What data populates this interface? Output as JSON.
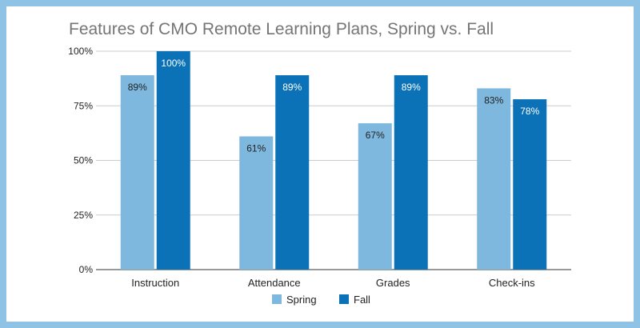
{
  "chart_data": {
    "type": "bar",
    "title": "Features of CMO Remote Learning Plans, Spring vs. Fall",
    "categories": [
      "Instruction",
      "Attendance",
      "Grades",
      "Check-ins"
    ],
    "series": [
      {
        "name": "Spring",
        "values": [
          89,
          61,
          67,
          83
        ],
        "labels": [
          "89%",
          "61%",
          "67%",
          "83%"
        ],
        "color": "#7fb8de",
        "label_color": "#222222"
      },
      {
        "name": "Fall",
        "values": [
          100,
          89,
          89,
          78
        ],
        "labels": [
          "100%",
          "89%",
          "89%",
          "78%"
        ],
        "color": "#0b72b8",
        "label_color": "#ffffff"
      }
    ],
    "ylim": [
      0,
      100
    ],
    "yticks": [
      0,
      25,
      50,
      75,
      100
    ],
    "ytick_labels": [
      "0%",
      "25%",
      "50%",
      "75%",
      "100%"
    ],
    "grid": true,
    "legend": "bottom",
    "gridline_color": "#cccccc",
    "background": "#ffffff",
    "border_color": "#8ec3e6"
  }
}
